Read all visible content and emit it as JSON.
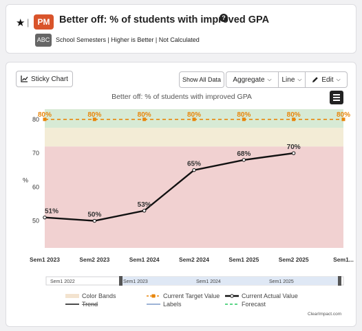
{
  "header": {
    "star_icon": "star-icon",
    "separator": "|",
    "badge": "PM",
    "badge_color": "#d9542b",
    "title": "Better off: % of students with improved GPA",
    "help_glyph": "?",
    "type_badge": "ABC",
    "meta": "School Semesters | Higher is Better | Not Calculated"
  },
  "toolbar": {
    "sticky_label": "Sticky Chart",
    "show_all_label": "Show All Data",
    "aggregate_label": "Aggregate",
    "line_label": "Line",
    "edit_label": "Edit"
  },
  "chart_data": {
    "type": "line",
    "title": "Better off: % of students with improved GPA",
    "ylabel": "%",
    "ylim": [
      42,
      83
    ],
    "yticks": [
      50,
      60,
      70,
      80
    ],
    "categories": [
      "Sem1 2023",
      "Sem2 2023",
      "Sem1 2024",
      "Sem2 2024",
      "Sem1 2025",
      "Sem2 2025",
      "Sem1..."
    ],
    "color_bands": [
      {
        "from": 42,
        "to": 72,
        "color": "#f1d1d1"
      },
      {
        "from": 72,
        "to": 77.5,
        "color": "#f3ecd6"
      },
      {
        "from": 77.5,
        "to": 83,
        "color": "#d7ead5"
      }
    ],
    "series": [
      {
        "name": "Current Actual Value",
        "color": "#111111",
        "values": [
          51,
          50,
          53,
          65,
          68,
          70,
          null
        ],
        "labels": [
          "51%",
          "50%",
          "53%",
          "65%",
          "68%",
          "70%",
          ""
        ]
      },
      {
        "name": "Current Target Value",
        "color": "#e8860c",
        "values": [
          80,
          80,
          80,
          80,
          80,
          80,
          80
        ],
        "labels": [
          "80%",
          "80%",
          "80%",
          "80%",
          "80%",
          "80%",
          "80%"
        ]
      }
    ],
    "navigator": {
      "labels": [
        "Sem1 2022",
        "Sem1 2023",
        "Sem1 2024",
        "Sem1 2025"
      ]
    },
    "legend": [
      {
        "label": "Color Bands",
        "kind": "band",
        "color": "#f3e3cf"
      },
      {
        "label": "Current Target Value",
        "kind": "target",
        "color": "#e8860c"
      },
      {
        "label": "Current Actual Value",
        "kind": "actual",
        "color": "#111111"
      },
      {
        "label": "Trend",
        "kind": "trend",
        "color": "#111111"
      },
      {
        "label": "Labels",
        "kind": "labels",
        "color": "#7b98c9"
      },
      {
        "label": "Forecast",
        "kind": "forecast",
        "color": "#22c55e"
      }
    ]
  },
  "footer": {
    "credit": "ClearImpact.com"
  }
}
